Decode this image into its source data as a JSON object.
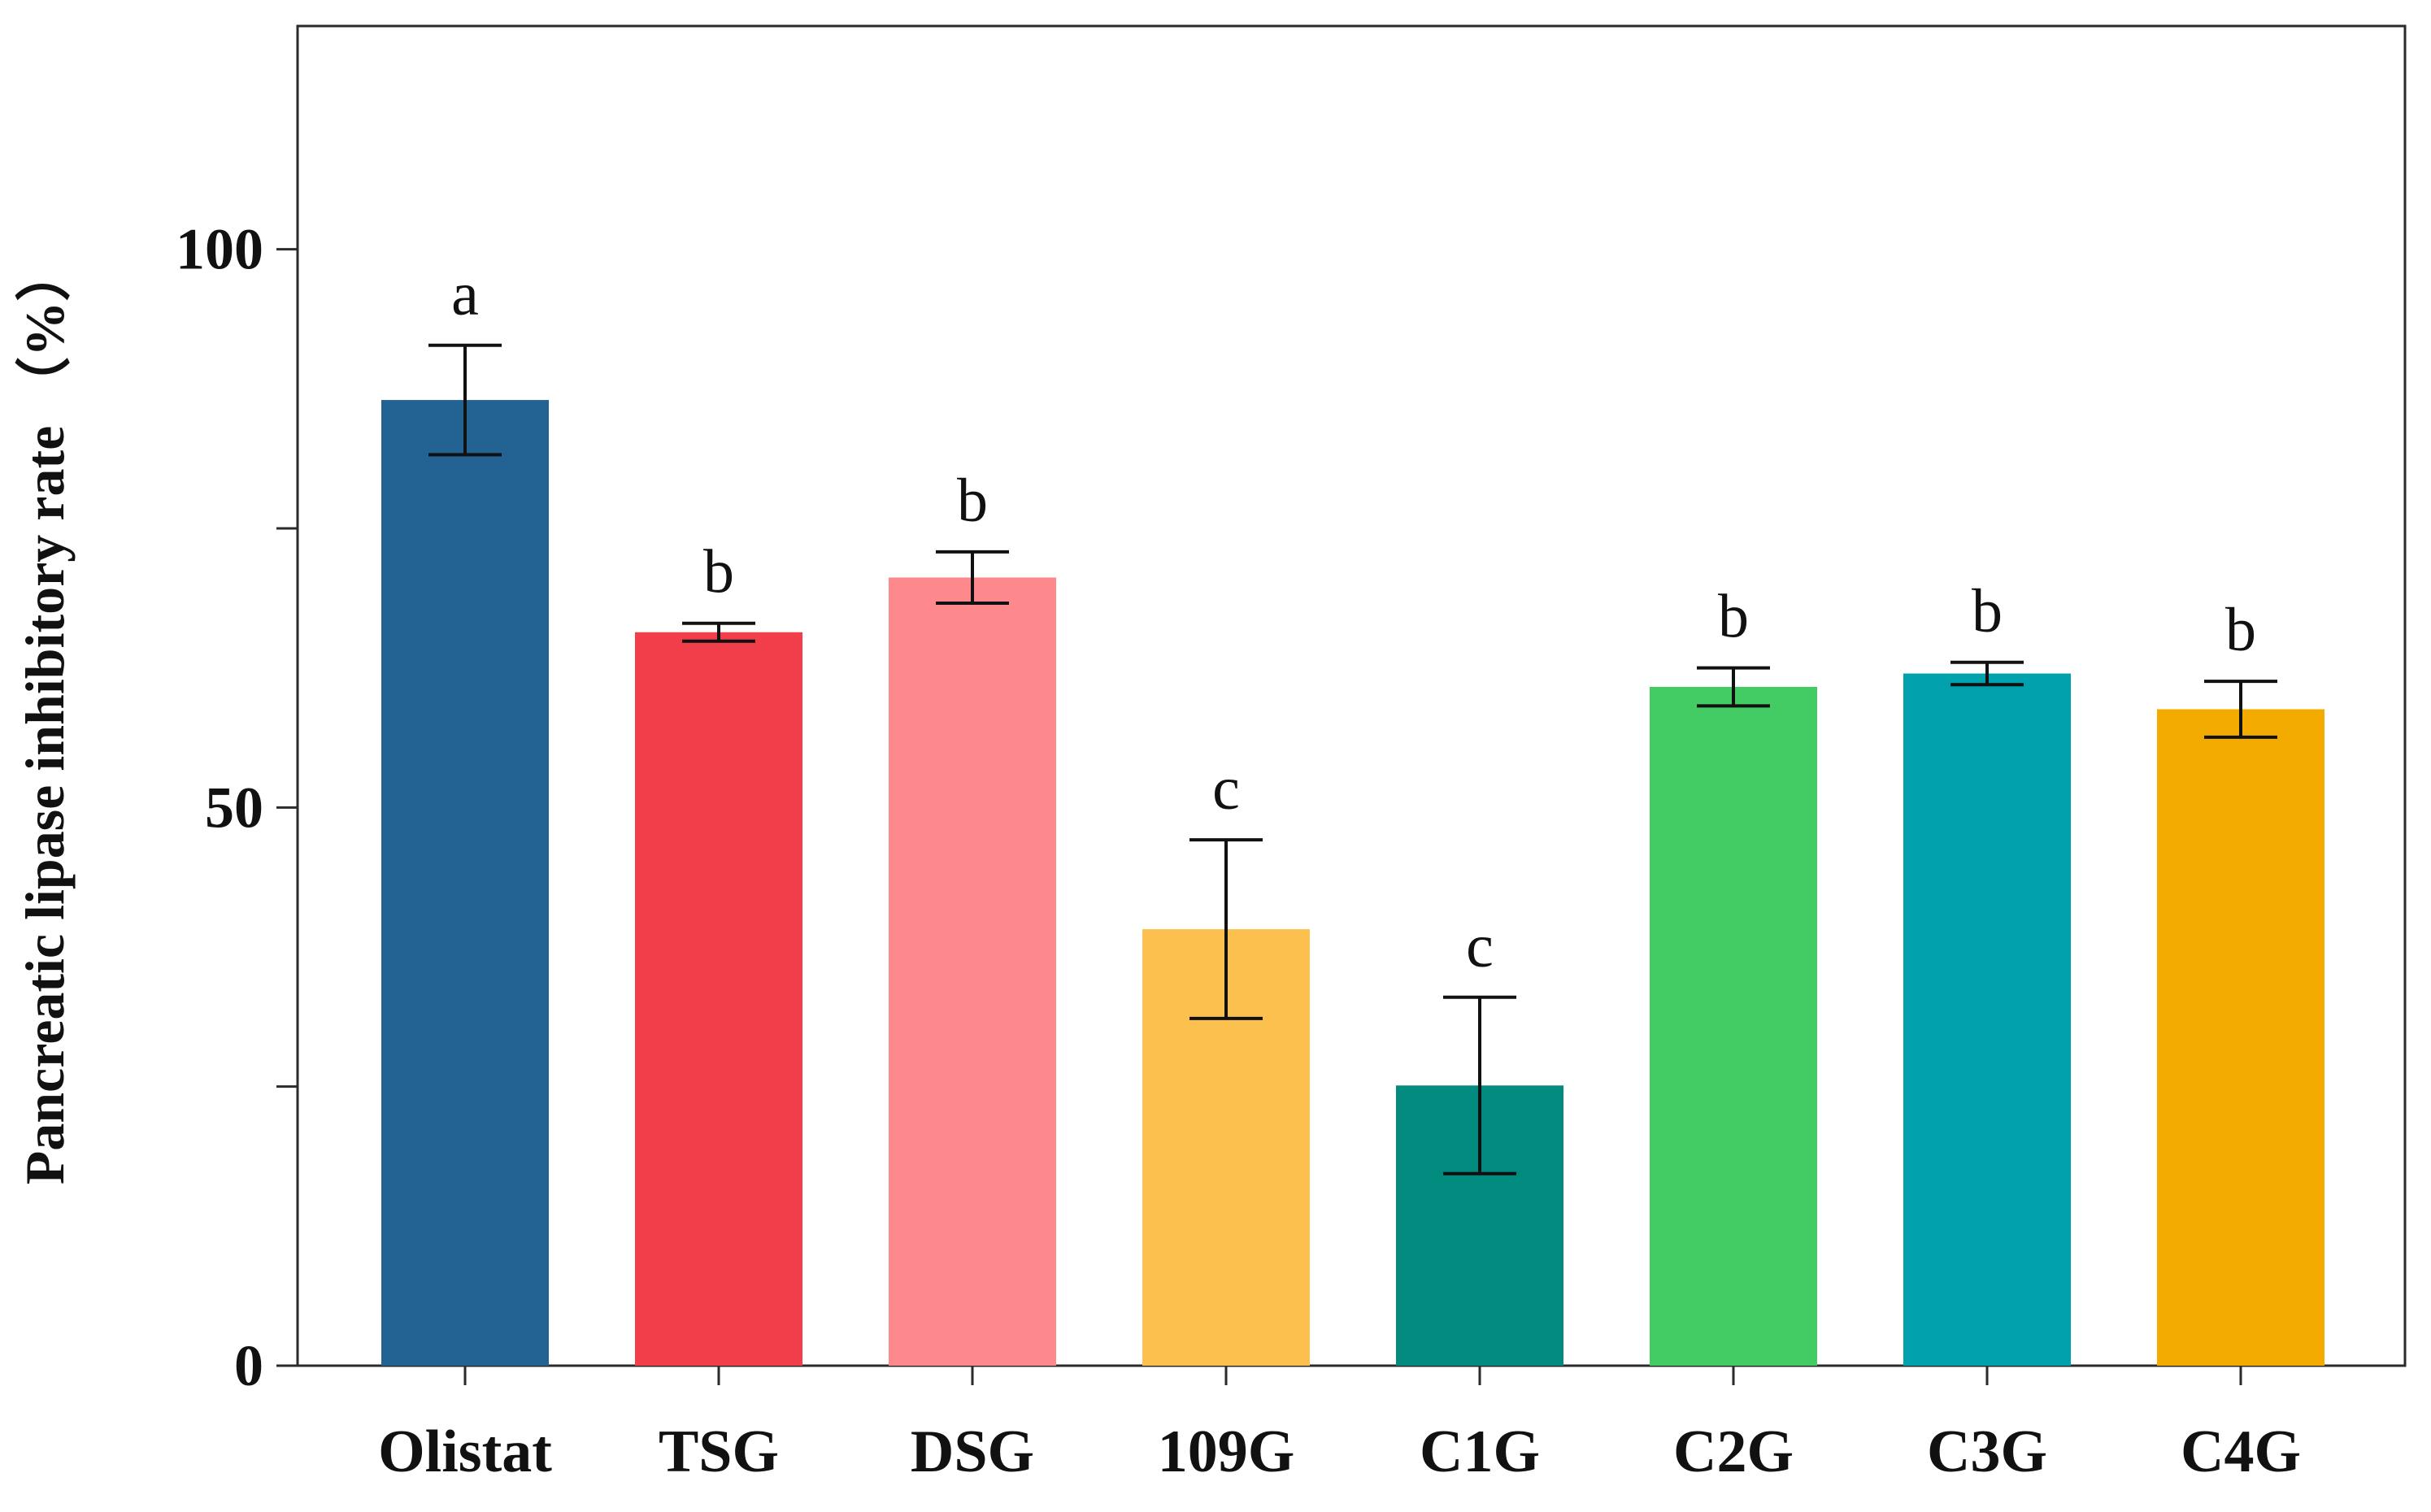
{
  "chart_data": {
    "type": "bar",
    "title": "",
    "xlabel": "",
    "ylabel": "Pancreatic lipase inhibitory rate （%）",
    "ylim": [
      0,
      120
    ],
    "yticks": [
      0,
      25,
      50,
      75,
      100
    ],
    "ytick_labels": [
      "0",
      "",
      "50",
      "",
      "100"
    ],
    "grid": false,
    "legend": "none",
    "categories": [
      "Olistat",
      "TSG",
      "DSG",
      "109G",
      "C1G",
      "C2G",
      "C3G",
      "C4G"
    ],
    "values": [
      86.5,
      65.7,
      70.6,
      39.1,
      25.1,
      60.8,
      62.0,
      58.8
    ],
    "error": [
      4.9,
      0.8,
      2.3,
      8.0,
      7.9,
      1.7,
      1.0,
      2.5
    ],
    "significance_letters": [
      "a",
      "b",
      "b",
      "c",
      "c",
      "b",
      "b",
      "b"
    ],
    "colors": [
      "#226394",
      "#f23e4a",
      "#fd898c",
      "#fbc04e",
      "#018b7f",
      "#43cc63",
      "#00a1ac",
      "#f4ab00"
    ]
  }
}
